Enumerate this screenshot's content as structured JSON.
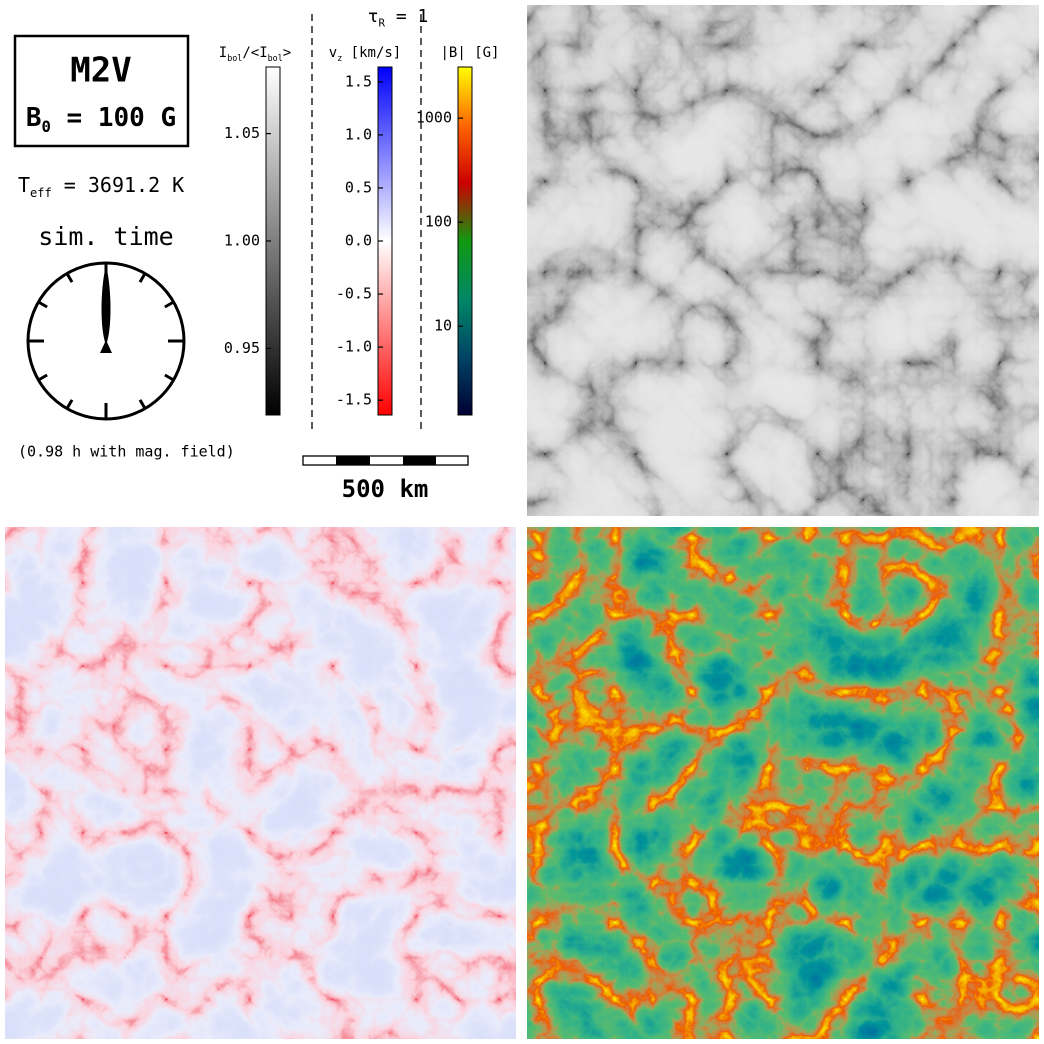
{
  "label_box": {
    "star": "M2V",
    "field": [
      {
        "text": "B"
      },
      {
        "text": "0",
        "sub": true
      },
      {
        "text": " = 100 G"
      }
    ]
  },
  "teff": [
    {
      "text": "T"
    },
    {
      "text": "eff",
      "sub": true
    },
    {
      "text": " = 3691.2 K"
    }
  ],
  "sim_time": "sim. time",
  "note": "(0.98 h with mag. field)",
  "tau": [
    {
      "text": "τ"
    },
    {
      "text": "R",
      "sub": true
    },
    {
      "text": " = 1"
    }
  ],
  "colorbars": [
    {
      "label": [
        {
          "text": "I"
        },
        {
          "text": "bol",
          "sub": true
        },
        {
          "text": "/<I"
        },
        {
          "text": "bol",
          "sub": true
        },
        {
          "text": ">"
        }
      ],
      "ylim": [
        0.919,
        1.081
      ],
      "yticks": [
        1.05,
        {
          "value": 1.0,
          "label": "1.00"
        },
        0.95
      ],
      "scale": "linear",
      "colors": [
        "#000000",
        "#ffffff"
      ]
    },
    {
      "label": [
        {
          "text": "v"
        },
        {
          "text": "z",
          "sub": true
        },
        {
          "text": " [km/s]"
        }
      ],
      "ylim": [
        -1.64,
        1.64
      ],
      "yticks": [
        1.5,
        {
          "value": 1.0,
          "label": "1.0"
        },
        0.5,
        {
          "value": 0,
          "label": "0.0"
        },
        -0.5,
        {
          "value": -1.0,
          "label": "-1.0"
        },
        -1.5
      ],
      "scale": "linear",
      "colors": [
        "#ff0000",
        "#ffffff",
        "#0000ff"
      ]
    },
    {
      "label": [
        {
          "text": "|B| [G]"
        }
      ],
      "ylim": [
        1.4,
        3100
      ],
      "yticks": [
        1000,
        100,
        10
      ],
      "scale": "log",
      "colors": [
        "#000033",
        "#004466",
        "#008866",
        "#119911",
        "#cc0000",
        "#ff6600",
        "#ffff00"
      ]
    }
  ],
  "scale_bar": "500 km"
}
